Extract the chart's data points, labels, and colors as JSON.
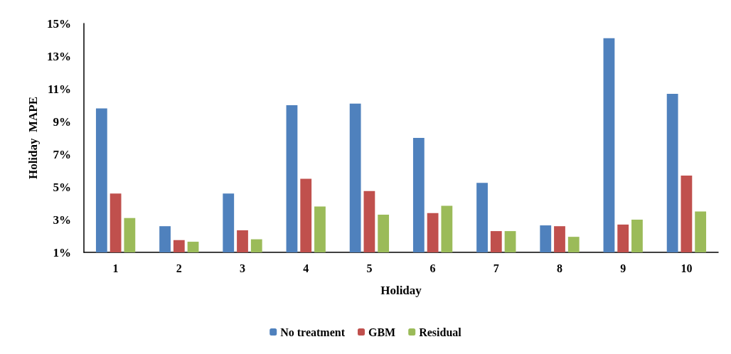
{
  "chart_data": {
    "type": "bar",
    "xlabel": "Holiday",
    "ylabel": "Holiday  MAPE",
    "categories": [
      "1",
      "2",
      "3",
      "4",
      "5",
      "6",
      "7",
      "8",
      "9",
      "10"
    ],
    "series": [
      {
        "name": "No treatment",
        "color": "#4f81bd",
        "values": [
          9.8,
          2.6,
          4.6,
          10.0,
          10.1,
          8.0,
          5.25,
          2.65,
          14.1,
          10.7
        ]
      },
      {
        "name": "GBM",
        "color": "#c0504d",
        "values": [
          4.6,
          1.75,
          2.35,
          5.5,
          4.75,
          3.4,
          2.3,
          2.6,
          2.7,
          5.7
        ]
      },
      {
        "name": "Residual",
        "color": "#9bbb59",
        "values": [
          3.1,
          1.65,
          1.8,
          3.8,
          3.3,
          3.85,
          2.3,
          1.95,
          3.0,
          3.5
        ]
      }
    ],
    "ylim": [
      1,
      15
    ],
    "yticks": [
      {
        "value": 1,
        "label": "1%"
      },
      {
        "value": 3,
        "label": "3%"
      },
      {
        "value": 5,
        "label": "5%"
      },
      {
        "value": 7,
        "label": "7%"
      },
      {
        "value": 9,
        "label": "9%"
      },
      {
        "value": 11,
        "label": "11%"
      },
      {
        "value": 13,
        "label": "13%"
      },
      {
        "value": 15,
        "label": "15%"
      }
    ],
    "grid": false,
    "legend": "bottom"
  }
}
